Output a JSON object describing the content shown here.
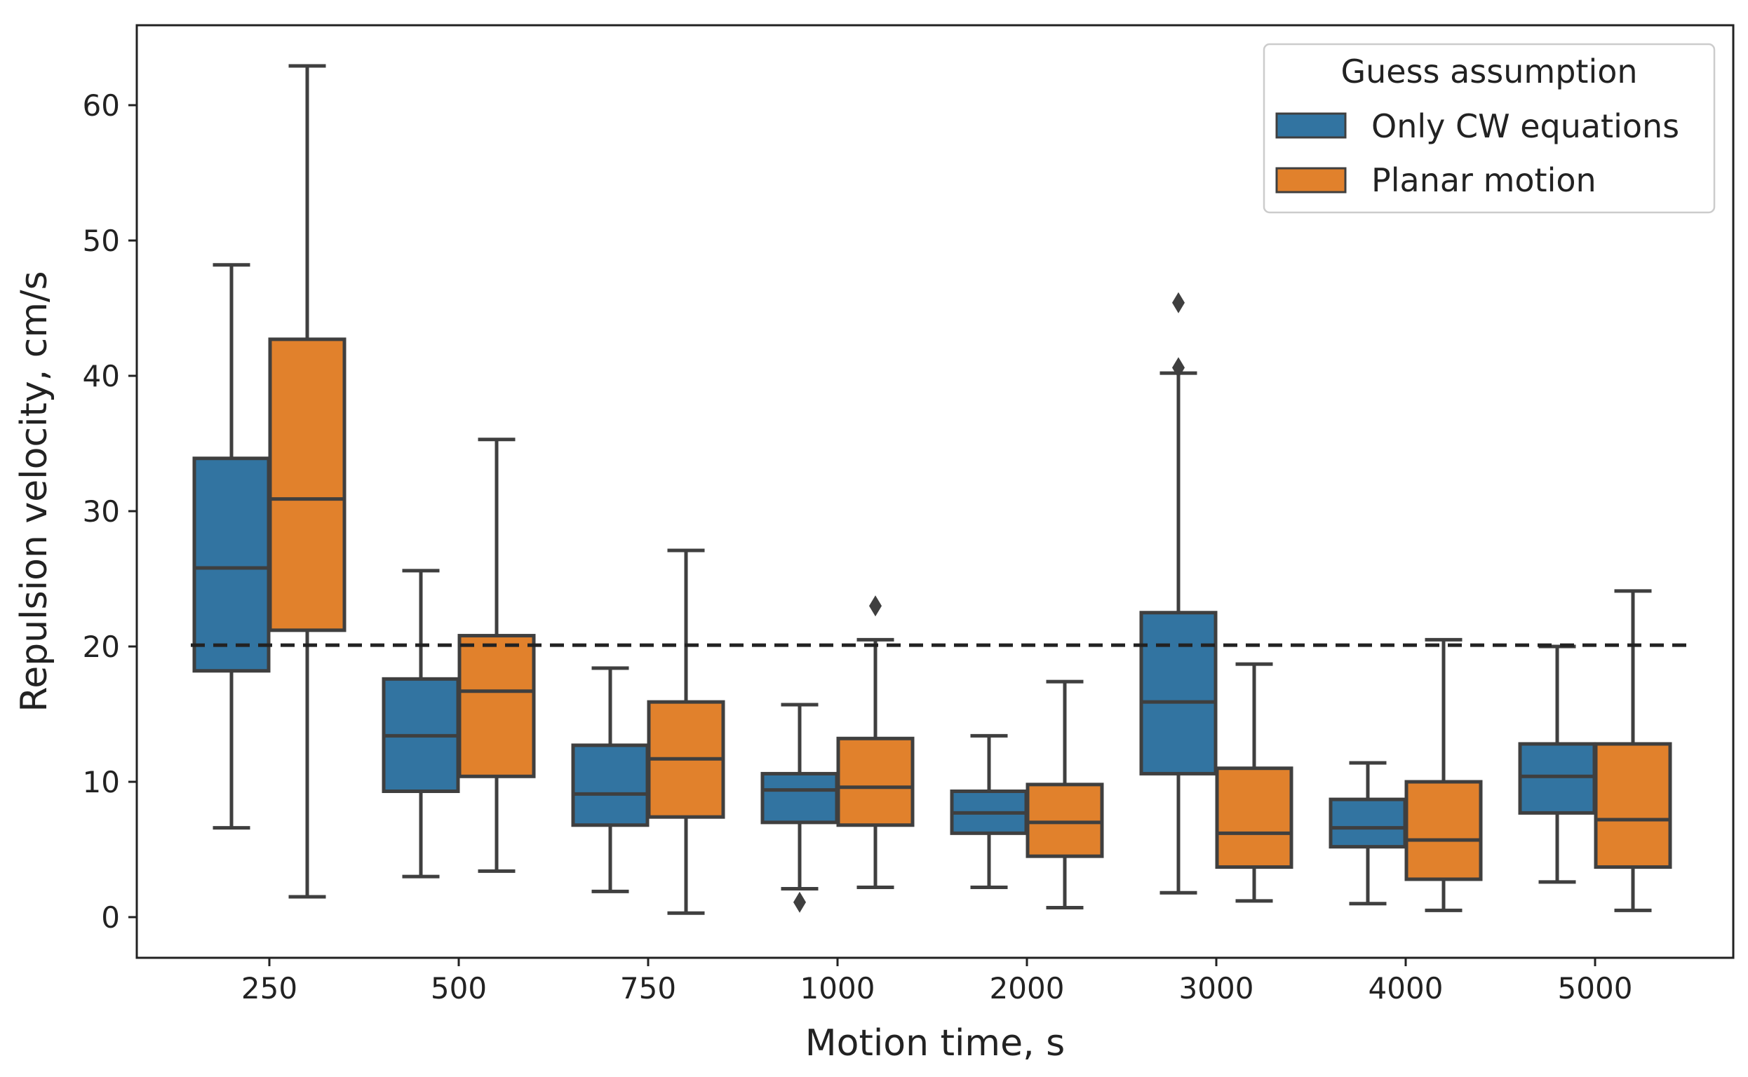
{
  "chart_data": {
    "type": "box",
    "title": "",
    "xlabel": "Motion time, s",
    "ylabel": "Repulsion velocity, cm/s",
    "categories": [
      "250",
      "500",
      "750",
      "1000",
      "2000",
      "3000",
      "4000",
      "5000"
    ],
    "yticks": [
      0,
      10,
      20,
      30,
      40,
      50,
      60
    ],
    "ylim": [
      -3,
      66
    ],
    "reference_line": {
      "y": 20.1,
      "style": "dashed"
    },
    "legend": {
      "title": "Guess assumption",
      "placement": "top-right"
    },
    "series": [
      {
        "name": "Only CW equations",
        "color": "#3274a1",
        "boxes": [
          {
            "whislo": 6.6,
            "q1": 18.2,
            "med": 25.8,
            "q3": 33.9,
            "whishi": 48.2,
            "fliers": []
          },
          {
            "whislo": 3.0,
            "q1": 9.3,
            "med": 13.4,
            "q3": 17.6,
            "whishi": 25.6,
            "fliers": []
          },
          {
            "whislo": 1.9,
            "q1": 6.8,
            "med": 9.1,
            "q3": 12.7,
            "whishi": 18.4,
            "fliers": []
          },
          {
            "whislo": 2.1,
            "q1": 7.0,
            "med": 9.4,
            "q3": 10.6,
            "whishi": 15.7,
            "fliers": [
              1.1
            ]
          },
          {
            "whislo": 2.2,
            "q1": 6.2,
            "med": 7.7,
            "q3": 9.3,
            "whishi": 13.4,
            "fliers": []
          },
          {
            "whislo": 1.8,
            "q1": 10.6,
            "med": 15.9,
            "q3": 22.5,
            "whishi": 40.2,
            "fliers": [
              40.6,
              45.4
            ]
          },
          {
            "whislo": 1.0,
            "q1": 5.2,
            "med": 6.6,
            "q3": 8.7,
            "whishi": 11.4,
            "fliers": []
          },
          {
            "whislo": 2.6,
            "q1": 7.7,
            "med": 10.4,
            "q3": 12.8,
            "whishi": 20.0,
            "fliers": []
          }
        ]
      },
      {
        "name": "Planar motion",
        "color": "#e1812c",
        "boxes": [
          {
            "whislo": 1.5,
            "q1": 21.2,
            "med": 30.9,
            "q3": 42.7,
            "whishi": 62.9,
            "fliers": []
          },
          {
            "whislo": 3.4,
            "q1": 10.4,
            "med": 16.7,
            "q3": 20.8,
            "whishi": 35.3,
            "fliers": []
          },
          {
            "whislo": 0.3,
            "q1": 7.4,
            "med": 11.7,
            "q3": 15.9,
            "whishi": 27.1,
            "fliers": []
          },
          {
            "whislo": 2.2,
            "q1": 6.8,
            "med": 9.6,
            "q3": 13.2,
            "whishi": 20.5,
            "fliers": [
              23.0
            ]
          },
          {
            "whislo": 0.7,
            "q1": 4.5,
            "med": 7.0,
            "q3": 9.8,
            "whishi": 17.4,
            "fliers": []
          },
          {
            "whislo": 1.2,
            "q1": 3.7,
            "med": 6.2,
            "q3": 11.0,
            "whishi": 18.7,
            "fliers": []
          },
          {
            "whislo": 0.5,
            "q1": 2.8,
            "med": 5.7,
            "q3": 10.0,
            "whishi": 20.5,
            "fliers": []
          },
          {
            "whislo": 0.5,
            "q1": 3.7,
            "med": 7.2,
            "q3": 12.8,
            "whishi": 24.1,
            "fliers": []
          }
        ]
      }
    ]
  }
}
